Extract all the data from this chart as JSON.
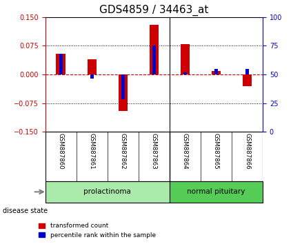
{
  "title": "GDS4859 / 34463_at",
  "samples": [
    "GSM887860",
    "GSM887861",
    "GSM887862",
    "GSM887863",
    "GSM887864",
    "GSM887865",
    "GSM887866"
  ],
  "transformed_count": [
    0.055,
    0.04,
    -0.095,
    0.13,
    0.08,
    0.01,
    -0.03
  ],
  "percentile_rank": [
    0.055,
    -0.01,
    -0.065,
    0.075,
    0.005,
    0.015,
    0.015
  ],
  "groups": [
    {
      "label": "prolactinoma",
      "start": 0,
      "end": 4,
      "color": "#AAEAAA"
    },
    {
      "label": "normal pituitary",
      "start": 4,
      "end": 7,
      "color": "#55CC55"
    }
  ],
  "ylim_left": [
    -0.15,
    0.15
  ],
  "ylim_right": [
    0,
    100
  ],
  "yticks_left": [
    -0.15,
    -0.075,
    0,
    0.075,
    0.15
  ],
  "yticks_right": [
    0,
    25,
    50,
    75,
    100
  ],
  "bar_color_red": "#CC0000",
  "bar_color_blue": "#0000CC",
  "bar_width": 0.3,
  "zero_line_color": "#CC0000",
  "bg_color": "#FFFFFF",
  "title_fontsize": 11,
  "disease_state_label": "disease state",
  "legend_items": [
    {
      "label": "transformed count",
      "color": "#CC0000"
    },
    {
      "label": "percentile rank within the sample",
      "color": "#0000CC"
    }
  ]
}
